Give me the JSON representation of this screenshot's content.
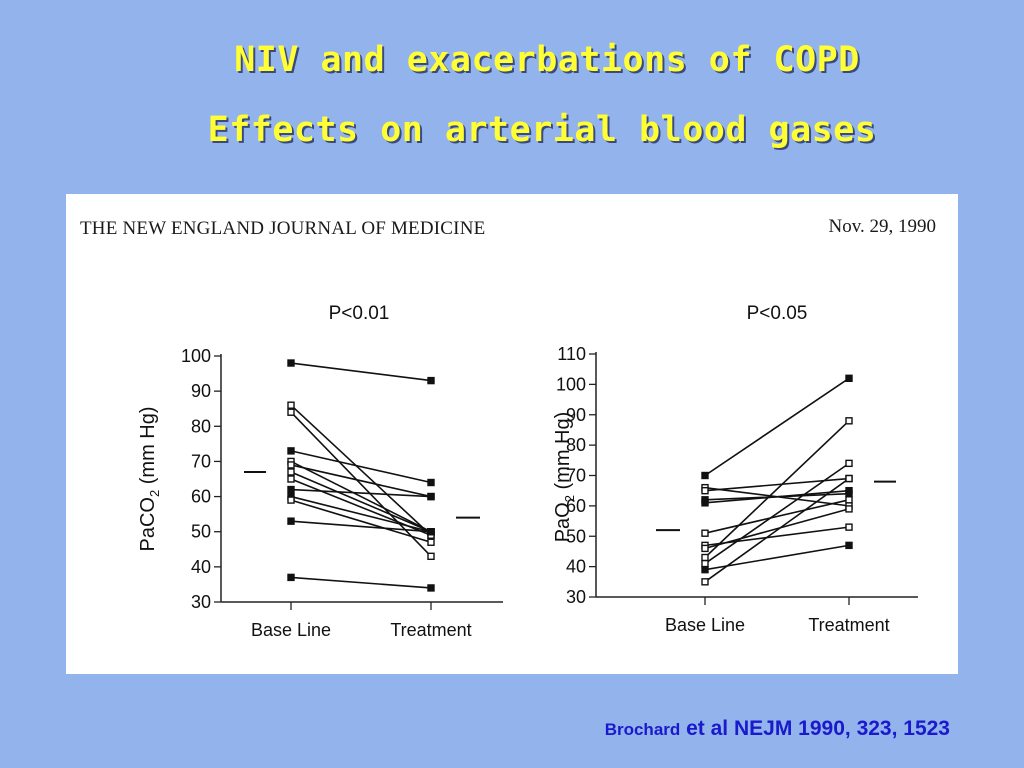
{
  "slide": {
    "title_line1": "NIV and exacerbations of COPD",
    "title_line2": "Effects on arterial blood gases"
  },
  "panel": {
    "journal": "THE NEW ENGLAND JOURNAL OF MEDICINE",
    "date": "Nov. 29, 1990"
  },
  "citation": {
    "author": "Brochard",
    "etal": "et al",
    "ref": "NEJM 1990, 323, 1523"
  },
  "chart_data": [
    {
      "type": "line",
      "title": "P<0.01",
      "ylabel_main": "PaCO",
      "ylabel_sub": "2",
      "ylabel_unit": "(mm Hg)",
      "categories": [
        "Base Line",
        "Treatment"
      ],
      "ylim": [
        30,
        100
      ],
      "yticks": [
        30,
        40,
        50,
        60,
        70,
        80,
        90,
        100
      ],
      "grid": false,
      "means": [
        67,
        54
      ],
      "series": [
        {
          "values": [
            98,
            93
          ],
          "filled": true
        },
        {
          "values": [
            86,
            49
          ],
          "filled": false
        },
        {
          "values": [
            84,
            43
          ],
          "filled": false
        },
        {
          "values": [
            73,
            64
          ],
          "filled": true
        },
        {
          "values": [
            70,
            50
          ],
          "filled": false
        },
        {
          "values": [
            69,
            60
          ],
          "filled": false
        },
        {
          "values": [
            67,
            50
          ],
          "filled": false
        },
        {
          "values": [
            65,
            49
          ],
          "filled": false
        },
        {
          "values": [
            62,
            60
          ],
          "filled": true
        },
        {
          "values": [
            60,
            50
          ],
          "filled": true
        },
        {
          "values": [
            59,
            47
          ],
          "filled": false
        },
        {
          "values": [
            53,
            50
          ],
          "filled": true
        },
        {
          "values": [
            37,
            34
          ],
          "filled": true
        }
      ]
    },
    {
      "type": "line",
      "title": "P<0.05",
      "ylabel_main": "PaO",
      "ylabel_sub": "2",
      "ylabel_unit": "(mm Hg)",
      "categories": [
        "Base Line",
        "Treatment"
      ],
      "ylim": [
        30,
        110
      ],
      "yticks": [
        30,
        40,
        50,
        60,
        70,
        80,
        90,
        100,
        110
      ],
      "grid": false,
      "means": [
        52,
        68
      ],
      "series": [
        {
          "values": [
            70,
            102
          ],
          "filled": true
        },
        {
          "values": [
            66,
            60
          ],
          "filled": false
        },
        {
          "values": [
            65,
            69
          ],
          "filled": false
        },
        {
          "values": [
            62,
            64
          ],
          "filled": true
        },
        {
          "values": [
            61,
            65
          ],
          "filled": true
        },
        {
          "values": [
            51,
            62
          ],
          "filled": false
        },
        {
          "values": [
            47,
            53
          ],
          "filled": false
        },
        {
          "values": [
            46,
            59
          ],
          "filled": false
        },
        {
          "values": [
            43,
            88
          ],
          "filled": false
        },
        {
          "values": [
            41,
            74
          ],
          "filled": false
        },
        {
          "values": [
            39,
            47
          ],
          "filled": true
        },
        {
          "values": [
            35,
            69
          ],
          "filled": false
        }
      ]
    }
  ]
}
